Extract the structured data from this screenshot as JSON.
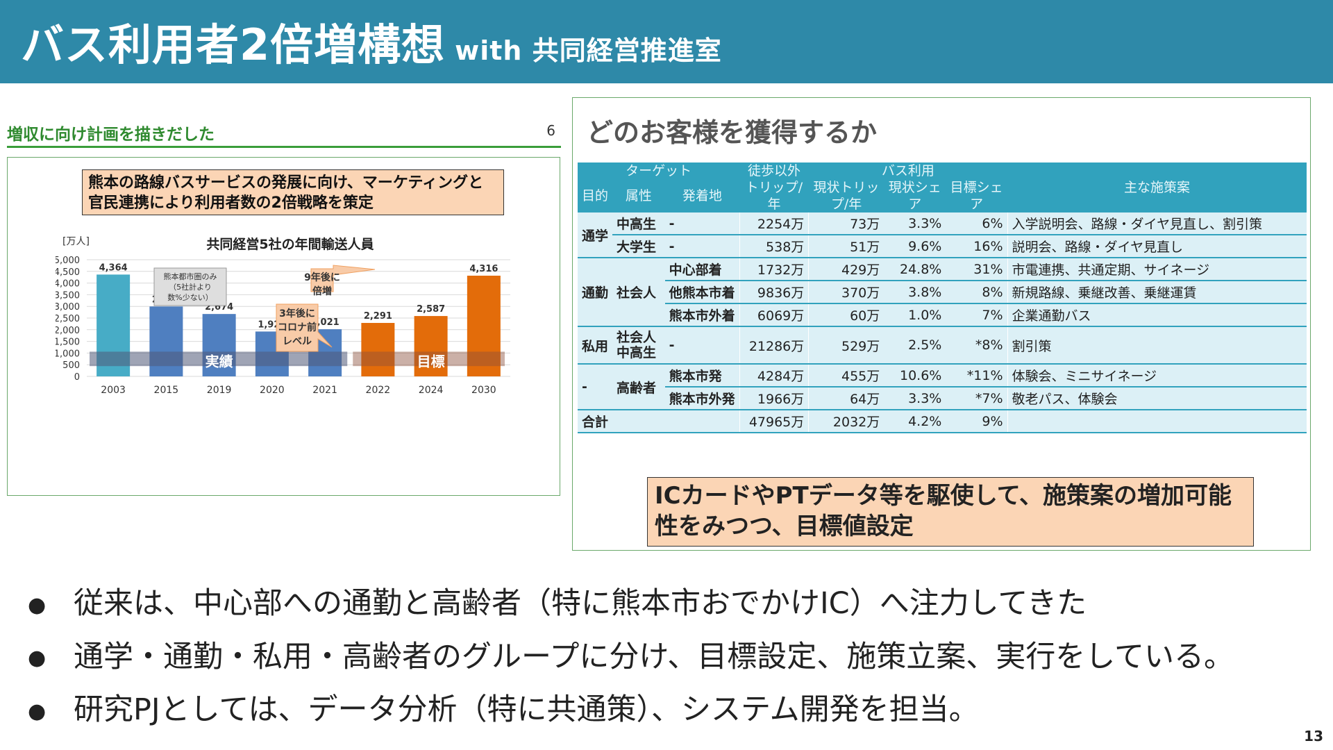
{
  "header": {
    "title": "バス利用者2倍増構想",
    "subtitle": "with 共同経営推進室",
    "color": "#2e89a8"
  },
  "left": {
    "heading": "増収に向け計画を描きだした",
    "page": "6",
    "callout": "熊本の路線バスサービスの発展に向け、マーケティングと官民連携により利用者数の2倍戦略を策定"
  },
  "chart_data": {
    "type": "bar",
    "title": "共同経営5社の年間輸送人員",
    "ylabel": "[万人]",
    "categories": [
      "2003",
      "2015",
      "2019",
      "2020",
      "2021",
      "2022",
      "2024",
      "2030"
    ],
    "values": [
      4364,
      2997,
      2674,
      1923,
      2021,
      2291,
      2587,
      4316
    ],
    "value_labels": [
      "4,364",
      "2,997",
      "2,674",
      "1,923",
      "2,021",
      "2,291",
      "2,587",
      "4,316"
    ],
    "colors": [
      "#47acc6",
      "#4f7fc0",
      "#4f7fc0",
      "#4f7fc0",
      "#4f7fc0",
      "#e36c0a",
      "#e36c0a",
      "#e36c0a"
    ],
    "ylim": [
      0,
      5000
    ],
    "yticks": [
      "0",
      "500",
      "1,000",
      "1,500",
      "2,000",
      "2,500",
      "3,000",
      "3,500",
      "4,000",
      "4,500",
      "5,000"
    ],
    "grid": true,
    "band_labels": {
      "actual": "実績",
      "target": "目標"
    },
    "annotations": {
      "note_2003": "熊本都市圏のみ（5社計より数%少ない）",
      "after3": "3年後にコロナ前レベル",
      "after9": "9年後に倍増"
    }
  },
  "right": {
    "title": "どのお客様を獲得するか",
    "table": {
      "header": {
        "target": "ターゲット",
        "walk": "徒歩以外トリップ/年",
        "bus": "バス利用",
        "purpose": "目的",
        "attr": "属性",
        "dest": "発着地",
        "cur_trip": "現状トリップ/年",
        "cur_share": "現状シェア",
        "goal_share": "目標シェア",
        "measures": "主な施策案"
      },
      "rows": [
        {
          "purpose": "通学",
          "attr": "中高生",
          "dest": "-",
          "walk": "2254万",
          "trip": "73万",
          "share": "3.3%",
          "goal": "6%",
          "measure": "入学説明会、路線・ダイヤ見直し、割引策"
        },
        {
          "attr": "大学生",
          "dest": "-",
          "walk": "538万",
          "trip": "51万",
          "share": "9.6%",
          "goal": "16%",
          "measure": "説明会、路線・ダイヤ見直し"
        },
        {
          "purpose": "通勤",
          "attr": "社会人",
          "dest": "中心部着",
          "walk": "1732万",
          "trip": "429万",
          "share": "24.8%",
          "goal": "31%",
          "measure": "市電連携、共通定期、サイネージ"
        },
        {
          "dest": "他熊本市着",
          "walk": "9836万",
          "trip": "370万",
          "share": "3.8%",
          "goal": "8%",
          "measure": "新規路線、乗継改善、乗継運賃"
        },
        {
          "dest": "熊本市外着",
          "walk": "6069万",
          "trip": "60万",
          "share": "1.0%",
          "goal": "7%",
          "measure": "企業通勤バス"
        },
        {
          "purpose": "私用",
          "attr": "社会人 中高生",
          "dest": "-",
          "walk": "21286万",
          "trip": "529万",
          "share": "2.5%",
          "goal": "*8%",
          "measure": "割引策"
        },
        {
          "purpose": "-",
          "attr": "高齢者",
          "dest": "熊本市発",
          "walk": "4284万",
          "trip": "455万",
          "share": "10.6%",
          "goal": "*11%",
          "measure": "体験会、ミニサイネージ"
        },
        {
          "dest": "熊本市外発",
          "walk": "1966万",
          "trip": "64万",
          "share": "3.3%",
          "goal": "*7%",
          "measure": "敬老パス、体験会"
        }
      ],
      "total": {
        "label": "合計",
        "walk": "47965万",
        "trip": "2032万",
        "share": "4.2%",
        "goal": "9%"
      }
    },
    "callout": "ICカードやPTデータ等を駆使して、施策案の増加可能性をみつつ、目標値設定"
  },
  "bullets": [
    "従来は、中心部への通勤と高齢者（特に熊本市おでかけIC）へ注力してきた",
    "通学・通勤・私用・高齢者のグループに分け、目標設定、施策立案、実行をしている。",
    "研究PJとしては、データ分析（特に共通策）、システム開発を担当。"
  ],
  "page_number": "13"
}
